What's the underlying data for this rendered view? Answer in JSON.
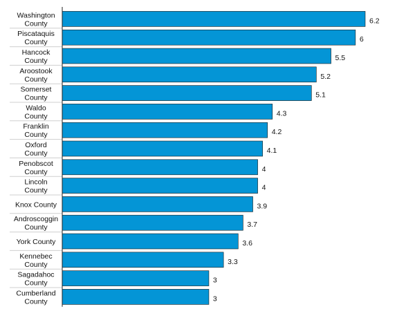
{
  "colors": {
    "bar": "#0495d6",
    "bar_border": "#1a1a1a",
    "axis": "#222222",
    "separator": "#cfcfcf"
  },
  "chart_data": {
    "type": "bar",
    "orientation": "horizontal",
    "title": "",
    "xlabel": "",
    "ylabel": "",
    "xlim": [
      0,
      6.5
    ],
    "grid": false,
    "legend": "none",
    "categories": [
      [
        "Washington",
        "County"
      ],
      [
        "Piscataquis",
        "County"
      ],
      [
        "Hancock",
        "County"
      ],
      [
        "Aroostook",
        "County"
      ],
      [
        "Somerset",
        "County"
      ],
      [
        "Waldo",
        "County"
      ],
      [
        "Franklin",
        "County"
      ],
      [
        "Oxford",
        "County"
      ],
      [
        "Penobscot",
        "County"
      ],
      [
        "Lincoln",
        "County"
      ],
      [
        "Knox County"
      ],
      [
        "Androscoggin",
        "County"
      ],
      [
        "York County"
      ],
      [
        "Kennebec",
        "County"
      ],
      [
        "Sagadahoc",
        "County"
      ],
      [
        "Cumberland",
        "County"
      ]
    ],
    "values": [
      6.2,
      6,
      5.5,
      5.2,
      5.1,
      4.3,
      4.2,
      4.1,
      4,
      4,
      3.9,
      3.7,
      3.6,
      3.3,
      3,
      3
    ],
    "value_labels": [
      "6.2",
      "6",
      "5.5",
      "5.2",
      "5.1",
      "4.3",
      "4.2",
      "4.1",
      "4",
      "4",
      "3.9",
      "3.7",
      "3.6",
      "3.3",
      "3",
      "3"
    ]
  }
}
